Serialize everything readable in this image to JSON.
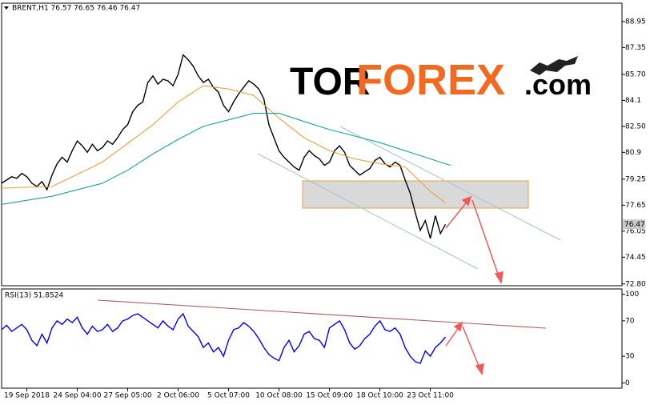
{
  "chart_data": [
    {
      "type": "line",
      "title": "BRENT,H1 76.57 76.65 76.46 76.47",
      "brand": [
        "TOR",
        "FOREX",
        ".com"
      ],
      "last_price": {
        "value": 76.47,
        "label": "76.47"
      },
      "xlim": [
        0,
        123
      ],
      "ylim": [
        72.69,
        90.08
      ],
      "yticks": [
        88.95,
        87.35,
        {
          "value": 85.7,
          "label": "85.70"
        },
        84.1,
        {
          "value": 82.5,
          "label": "82.50"
        },
        80.9,
        79.25,
        77.65,
        76.05,
        74.45,
        {
          "value": 72.8,
          "label": "72.80"
        }
      ],
      "series": [
        {
          "color": "#000000",
          "values": [
            79.0,
            79.2,
            79.4,
            79.3,
            79.6,
            79.4,
            79.0,
            78.8,
            79.1,
            78.6,
            79.5,
            80.2,
            80.6,
            80.3,
            81.0,
            81.6,
            81.3,
            80.9,
            81.4,
            81.0,
            81.2,
            81.6,
            81.4,
            81.8,
            82.3,
            82.6,
            83.4,
            83.8,
            84.0,
            85.2,
            85.6,
            85.1,
            85.4,
            85.3,
            85.0,
            85.7,
            86.9,
            86.6,
            86.2,
            85.6,
            85.2,
            85.4,
            84.9,
            84.6,
            83.8,
            83.4,
            84.0,
            84.5,
            84.9,
            85.3,
            85.1,
            84.8,
            84.2,
            82.6,
            81.8,
            81.0,
            80.6,
            80.3,
            80.0,
            79.8,
            80.6,
            81.0,
            80.7,
            80.5,
            80.1,
            80.3,
            81.0,
            81.3,
            80.9,
            80.1,
            79.8,
            79.5,
            79.7,
            79.9,
            80.4,
            80.6,
            80.2,
            80.0,
            80.3,
            80.1,
            79.2,
            78.4,
            77.2,
            76.1,
            76.7,
            75.6,
            77.0,
            75.9,
            76.47
          ]
        },
        {
          "color": "#e8a33d",
          "x": [
            0,
            10,
            20,
            30,
            35,
            40,
            45,
            50,
            55,
            60,
            65,
            70,
            75,
            80,
            85,
            88
          ],
          "values": [
            78.7,
            78.8,
            80.3,
            82.6,
            84.0,
            85.0,
            84.8,
            84.4,
            83.0,
            81.8,
            81.0,
            80.5,
            80.2,
            80.0,
            78.5,
            77.8
          ]
        },
        {
          "color": "#19a39a",
          "x": [
            0,
            10,
            20,
            25,
            30,
            35,
            40,
            45,
            50,
            55,
            60,
            65,
            70,
            75,
            80,
            89
          ],
          "values": [
            77.7,
            78.2,
            79.0,
            79.8,
            80.8,
            81.7,
            82.5,
            82.9,
            83.3,
            83.3,
            82.8,
            82.3,
            81.9,
            81.5,
            81.0,
            80.1
          ]
        }
      ]
    },
    {
      "type": "line",
      "title": "RSI(13) 51.8524",
      "xlim": [
        0,
        123
      ],
      "ylim": [
        -6,
        106
      ],
      "yticks": [
        100,
        70,
        30,
        0
      ],
      "xticks": [
        {
          "value": 5,
          "label": "19 Sep 2018"
        },
        {
          "value": 15,
          "label": "24 Sep 04:00"
        },
        {
          "value": 25,
          "label": "27 Sep 05:00"
        },
        {
          "value": 35,
          "label": "2 Oct 06:00"
        },
        {
          "value": 45,
          "label": "5 Oct 07:00"
        },
        {
          "value": 55,
          "label": "10 Oct 08:00"
        },
        {
          "value": 65,
          "label": "15 Oct 09:00"
        },
        {
          "value": 75,
          "label": "18 Oct 10:00"
        },
        {
          "value": 85,
          "label": "23 Oct 11:00"
        }
      ],
      "series": [
        {
          "color": "#0000ff",
          "values": [
            60,
            65,
            58,
            62,
            66,
            60,
            48,
            42,
            55,
            45,
            62,
            70,
            66,
            72,
            68,
            74,
            62,
            55,
            64,
            58,
            60,
            66,
            58,
            62,
            70,
            72,
            76,
            78,
            74,
            70,
            66,
            62,
            70,
            64,
            60,
            72,
            78,
            64,
            58,
            52,
            40,
            45,
            35,
            40,
            30,
            48,
            60,
            62,
            68,
            64,
            58,
            50,
            40,
            32,
            28,
            25,
            40,
            48,
            35,
            42,
            55,
            58,
            50,
            48,
            40,
            62,
            66,
            70,
            60,
            45,
            38,
            42,
            50,
            55,
            64,
            70,
            60,
            58,
            62,
            55,
            40,
            30,
            24,
            22,
            36,
            30,
            40,
            45,
            51.85
          ]
        }
      ]
    }
  ]
}
